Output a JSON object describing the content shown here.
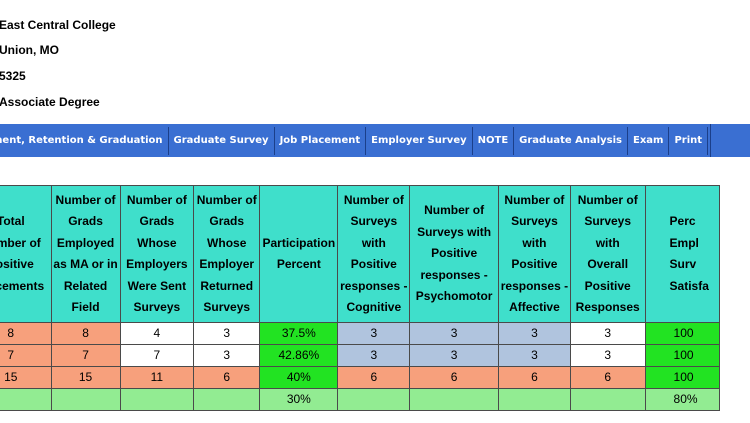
{
  "college": {
    "name": "East Central College",
    "location": "Union, MO",
    "code": "5325",
    "degree": "Associate Degree"
  },
  "nav": [
    "ment, Retention & Graduation",
    "Graduate Survey",
    "Job Placement",
    "Employer Survey",
    "NOTE",
    "Graduate Analysis",
    "Exam",
    "Print"
  ],
  "table": {
    "headers": [
      "Total Number of Positive Placements",
      "Number of Grads Employed as MA or in Related Field",
      "Number of Grads Whose Employers Were Sent Surveys",
      "Number of Grads Whose Employer Returned Surveys",
      "Participation Percent",
      "Number of Surveys with Positive responses - Cognitive",
      "Number of Surveys with Positive responses - Psychomotor",
      "Number of Surveys with Positive responses - Affective",
      "Number of Surveys with Overall Positive Responses",
      "Percent Employer Survey Satisfaction"
    ],
    "header_display": [
      "Total\nNumber of\nPositive\nPlacements",
      "Number of\nGrads\nEmployed\nas MA or in\nRelated\nField",
      "Number of\nGrads\nWhose\nEmployers\nWere Sent\nSurveys",
      "Number of\nGrads\nWhose\nEmployer\nReturned\nSurveys",
      "Participation\nPercent",
      "Number of\nSurveys\nwith\nPositive\nresponses -\nCognitive",
      "Number of\nSurveys with\nPositive\nresponses -\nPsychomotor",
      "Number of\nSurveys\nwith\nPositive\nresponses -\nAffective",
      "Number of\nSurveys with\nOverall\nPositive\nResponses",
      "Perc\nEmpl\nSurv\nSatisfa"
    ],
    "rows": [
      [
        "8",
        "8",
        "4",
        "3",
        "37.5%",
        "3",
        "3",
        "3",
        "3",
        "100"
      ],
      [
        "7",
        "7",
        "7",
        "3",
        "42.86%",
        "3",
        "3",
        "3",
        "3",
        "100"
      ],
      [
        "15",
        "15",
        "11",
        "6",
        "40%",
        "6",
        "6",
        "6",
        "6",
        "100"
      ],
      [
        "",
        "",
        "",
        "",
        "30%",
        "",
        "",
        "",
        "",
        "80%"
      ]
    ]
  },
  "colors": {
    "header_bg": "#3fdfcb",
    "nav_bg": "#3a6fd2",
    "salmon": "#f7a07c",
    "green": "#22e322",
    "blue": "#b0c4de",
    "light_green": "#92ec92"
  }
}
